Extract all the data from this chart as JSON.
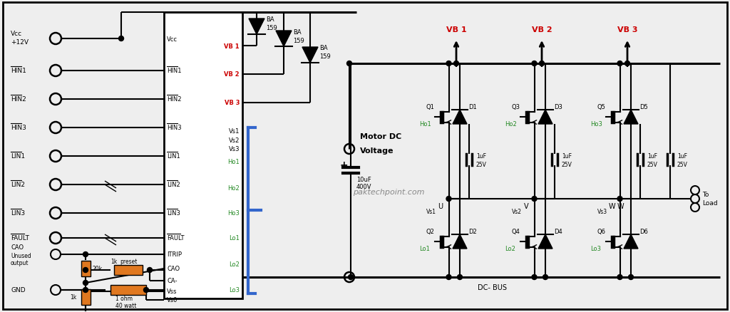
{
  "bg_color": "#eeeeee",
  "red_color": "#cc0000",
  "green_color": "#228822",
  "orange_color": "#e07820",
  "blue_color": "#3366cc",
  "figsize": [
    10.24,
    4.39
  ],
  "dpi": 100,
  "watermark": "paktechpoint.com",
  "ic_pins_left": [
    "Vcc",
    "HIN1",
    "HIN2",
    "HIN3",
    "LIN1",
    "LIN2",
    "LIN3",
    "FAULT",
    "ITRIP",
    "CAO",
    "CA-",
    "Vss",
    "Vs0"
  ],
  "ic_pins_right_vb": [
    "VB 1",
    "VB 2",
    "VB 3"
  ],
  "ic_pins_right_vs": [
    "Vs1",
    "Vs2",
    "Vs3"
  ],
  "ic_pins_right_ho": [
    "Ho1",
    "Ho2",
    "Ho3"
  ],
  "ic_pins_right_lo": [
    "Lo1",
    "Lo2",
    "Lo3"
  ]
}
